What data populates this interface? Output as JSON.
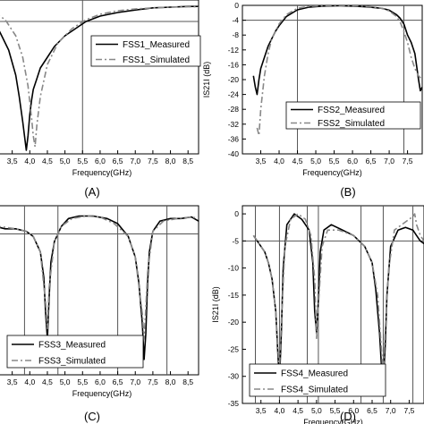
{
  "chart_data": [
    {
      "id": "A",
      "type": "line",
      "caption": "(A)",
      "xlabel": "Frequency(GHz)",
      "ylabel": "",
      "xlim": [
        3.0,
        8.8
      ],
      "ylim": [
        -42,
        1
      ],
      "xticks": [
        3.5,
        4.0,
        4.5,
        5.0,
        5.5,
        6.0,
        6.5,
        7.0,
        7.5,
        8.0,
        8.5
      ],
      "xtick_labels": [
        "3,5",
        "4,0",
        "4,5",
        "5,0",
        "5,5",
        "6,0",
        "6,5",
        "7,0",
        "7,5",
        "8,0",
        "8,5"
      ],
      "yticks": [],
      "ytick_labels": [],
      "ref_h": [
        -5
      ],
      "ref_v": [
        5.5
      ],
      "legend": {
        "position": "top-right"
      },
      "series": [
        {
          "name": "FSS1_Measured",
          "style": "solid",
          "x": [
            3.0,
            3.2,
            3.4,
            3.6,
            3.7,
            3.8,
            3.85,
            3.9,
            3.95,
            4.0,
            4.05,
            4.1,
            4.2,
            4.3,
            4.5,
            4.7,
            5.0,
            5.3,
            5.6,
            6.0,
            6.5,
            7.0,
            7.5,
            8.0,
            8.5,
            8.8
          ],
          "y": [
            -5,
            -9,
            -13,
            -20,
            -26,
            -33,
            -37,
            -41,
            -37,
            -31,
            -27,
            -24,
            -21,
            -18,
            -15,
            -12,
            -9,
            -7,
            -5,
            -3.5,
            -2.5,
            -1.8,
            -1.2,
            -1,
            -0.8,
            -0.8
          ]
        },
        {
          "name": "FSS1_Simulated",
          "style": "dashdot",
          "x": [
            3.0,
            3.3,
            3.6,
            3.8,
            3.95,
            4.05,
            4.1,
            4.15,
            4.2,
            4.3,
            4.5,
            4.8,
            5.2,
            5.6,
            6.0,
            6.5,
            7.0,
            7.5,
            8.0,
            8.5,
            8.8
          ],
          "y": [
            -2.5,
            -4.5,
            -9,
            -15,
            -23,
            -32,
            -37,
            -40,
            -34,
            -26,
            -17,
            -11,
            -7,
            -4.5,
            -3,
            -2,
            -1.5,
            -1.2,
            -1,
            -0.9,
            -0.9
          ]
        }
      ]
    },
    {
      "id": "B",
      "type": "line",
      "caption": "(B)",
      "xlabel": "Frequency(GHz)",
      "ylabel": "IS21I (dB)",
      "xlim": [
        3.0,
        7.9
      ],
      "ylim": [
        -40,
        0
      ],
      "xticks": [
        3.5,
        4.0,
        4.5,
        5.0,
        5.5,
        6.0,
        6.5,
        7.0,
        7.5
      ],
      "xtick_labels": [
        "3,5",
        "4,0",
        "4,5",
        "5,0",
        "5,5",
        "6,0",
        "6,5",
        "7,0",
        "7,5"
      ],
      "yticks": [
        0,
        -4,
        -8,
        -12,
        -16,
        -20,
        -24,
        -28,
        -32,
        -36,
        -40
      ],
      "ytick_labels": [
        "0",
        "-4",
        "-8",
        "-12",
        "-16",
        "-20",
        "-24",
        "-28",
        "-32",
        "-36",
        "-40"
      ],
      "ref_h": [
        -4
      ],
      "ref_v": [
        4.5,
        7.4
      ],
      "legend": {
        "position": "bottom-right"
      },
      "series": [
        {
          "name": "FSS2_Measured",
          "style": "solid",
          "x": [
            3.3,
            3.35,
            3.4,
            3.45,
            3.5,
            3.6,
            3.7,
            3.8,
            3.9,
            4.0,
            4.2,
            4.5,
            4.8,
            5.2,
            5.6,
            6.0,
            6.4,
            6.8,
            7.0,
            7.2,
            7.3,
            7.4,
            7.5,
            7.6,
            7.7,
            7.8,
            7.85,
            7.9
          ],
          "y": [
            -19,
            -22,
            -24,
            -20,
            -17,
            -14,
            -11,
            -9,
            -7,
            -5.5,
            -3,
            -1.2,
            -0.5,
            -0.2,
            -0.1,
            -0.2,
            -0.4,
            -0.8,
            -1.3,
            -2.5,
            -3.5,
            -5,
            -8,
            -10,
            -13,
            -20,
            -23,
            -22
          ]
        },
        {
          "name": "FSS2_Simulated",
          "style": "dashdot",
          "x": [
            3.4,
            3.45,
            3.5,
            3.6,
            3.7,
            3.8,
            4.0,
            4.2,
            4.5,
            4.8,
            5.2,
            5.6,
            6.0,
            6.4,
            6.8,
            7.0,
            7.2,
            7.3,
            7.4,
            7.5,
            7.6,
            7.7,
            7.8,
            7.9
          ],
          "y": [
            -33,
            -35,
            -28,
            -19,
            -13,
            -9,
            -5,
            -2.5,
            -0.8,
            -0.3,
            -0.1,
            0,
            -0.1,
            -0.3,
            -0.8,
            -1.5,
            -3,
            -4.5,
            -7,
            -10,
            -14,
            -17,
            -19,
            -20
          ]
        }
      ]
    },
    {
      "id": "C",
      "type": "line",
      "caption": "(C)",
      "xlabel": "Frequency(GHz)",
      "ylabel": "",
      "xlim": [
        3.0,
        8.8
      ],
      "ylim": [
        -32,
        1
      ],
      "xticks": [
        3.5,
        4.0,
        4.5,
        5.0,
        5.5,
        6.0,
        6.5,
        7.0,
        7.5,
        8.0,
        8.5
      ],
      "xtick_labels": [
        "3,5",
        "4,0",
        "4,5",
        "5,0",
        "5,5",
        "6,0",
        "6,5",
        "7,0",
        "7,5",
        "8,0",
        "8,5"
      ],
      "yticks": [],
      "ytick_labels": [],
      "ref_h": [
        -4.5
      ],
      "ref_v": [
        3.85,
        4.8,
        6.5,
        7.9
      ],
      "legend": {
        "position": "bottom-left"
      },
      "series": [
        {
          "name": "FSS3_Measured",
          "style": "solid",
          "x": [
            3.0,
            3.3,
            3.6,
            3.9,
            4.1,
            4.3,
            4.4,
            4.45,
            4.5,
            4.55,
            4.6,
            4.7,
            4.9,
            5.1,
            5.4,
            5.8,
            6.2,
            6.5,
            6.8,
            7.0,
            7.1,
            7.2,
            7.25,
            7.3,
            7.35,
            7.4,
            7.5,
            7.7,
            8.0,
            8.3,
            8.6,
            8.8
          ],
          "y": [
            -3,
            -3.5,
            -3.5,
            -4,
            -5,
            -8,
            -13,
            -20,
            -25,
            -17,
            -10,
            -6,
            -3,
            -1.5,
            -1,
            -1,
            -1.5,
            -2.5,
            -5,
            -9,
            -14,
            -22,
            -29,
            -24,
            -14,
            -8,
            -4,
            -2,
            -1.5,
            -1.5,
            -1.2,
            -2
          ]
        },
        {
          "name": "FSS3_Simulated",
          "style": "dashdot",
          "x": [
            3.0,
            3.3,
            3.6,
            3.9,
            4.1,
            4.3,
            4.45,
            4.5,
            4.55,
            4.7,
            4.9,
            5.2,
            5.6,
            6.0,
            6.4,
            6.8,
            7.0,
            7.2,
            7.25,
            7.3,
            7.35,
            7.5,
            7.8,
            8.2,
            8.6,
            8.8
          ],
          "y": [
            -3,
            -3.2,
            -3.5,
            -4,
            -5,
            -8,
            -18,
            -23,
            -15,
            -6,
            -3,
            -1.5,
            -1,
            -1.2,
            -2.5,
            -5,
            -9,
            -20,
            -25,
            -19,
            -12,
            -4,
            -2,
            -1.5,
            -1.2,
            -1.5
          ]
        }
      ]
    },
    {
      "id": "D",
      "type": "line",
      "caption": "(D)",
      "xlabel": "Frequency(GHz)",
      "ylabel": "IS21I (dB)",
      "xlim": [
        3.0,
        7.9
      ],
      "ylim": [
        -35,
        1.5
      ],
      "xticks": [
        3.5,
        4.0,
        4.5,
        5.0,
        5.5,
        6.0,
        6.5,
        7.0,
        7.5
      ],
      "xtick_labels": [
        "3,5",
        "4,0",
        "4,5",
        "5,0",
        "5,5",
        "6,0",
        "6,5",
        "7,0",
        "7,5"
      ],
      "yticks": [
        0,
        -5,
        -10,
        -15,
        -20,
        -25,
        -30,
        -35
      ],
      "ytick_labels": [
        "0",
        "-5",
        "-10",
        "-15",
        "-20",
        "-25",
        "-30",
        "-35"
      ],
      "ref_h": [
        -5
      ],
      "ref_v": [
        3.35,
        4.0,
        4.75,
        5.05,
        6.2,
        6.8,
        7.6
      ],
      "legend": {
        "position": "bottom-left"
      },
      "series": [
        {
          "name": "FSS4_Measured",
          "style": "solid",
          "x": [
            3.3,
            3.4,
            3.5,
            3.6,
            3.7,
            3.8,
            3.9,
            3.95,
            4.0,
            4.05,
            4.1,
            4.2,
            4.4,
            4.6,
            4.8,
            4.9,
            4.95,
            5.0,
            5.05,
            5.1,
            5.2,
            5.4,
            5.7,
            6.0,
            6.3,
            6.5,
            6.6,
            6.7,
            6.75,
            6.8,
            6.85,
            6.9,
            7.0,
            7.2,
            7.4,
            7.6,
            7.7,
            7.8,
            7.9
          ],
          "y": [
            -4,
            -5,
            -6,
            -7,
            -9,
            -12,
            -18,
            -25,
            -31,
            -22,
            -10,
            -2,
            0,
            -1,
            -3,
            -9,
            -18,
            -22,
            -16,
            -7,
            -3,
            -2,
            -3,
            -4,
            -6,
            -9,
            -14,
            -22,
            -28,
            -31,
            -25,
            -15,
            -6,
            -3,
            -2.5,
            -3,
            -4,
            -5,
            -5.5
          ]
        },
        {
          "name": "FSS4_Simulated",
          "style": "dashdot",
          "x": [
            3.3,
            3.4,
            3.5,
            3.6,
            3.7,
            3.8,
            3.9,
            3.95,
            4.0,
            4.05,
            4.15,
            4.3,
            4.5,
            4.7,
            4.85,
            4.95,
            5.0,
            5.05,
            5.15,
            5.3,
            5.6,
            6.0,
            6.3,
            6.5,
            6.65,
            6.75,
            6.8,
            6.85,
            6.95,
            7.1,
            7.3,
            7.5,
            7.6,
            7.65,
            7.7,
            7.8,
            7.9
          ],
          "y": [
            -4,
            -5,
            -6,
            -7,
            -9,
            -12,
            -18,
            -24,
            -29,
            -20,
            -6,
            -1,
            0,
            -1,
            -4,
            -12,
            -23,
            -17,
            -6,
            -3,
            -3,
            -4,
            -6,
            -9,
            -15,
            -25,
            -30,
            -22,
            -10,
            -3,
            -2,
            -1,
            -0.5,
            0,
            -2,
            -4,
            -5
          ]
        }
      ]
    }
  ]
}
